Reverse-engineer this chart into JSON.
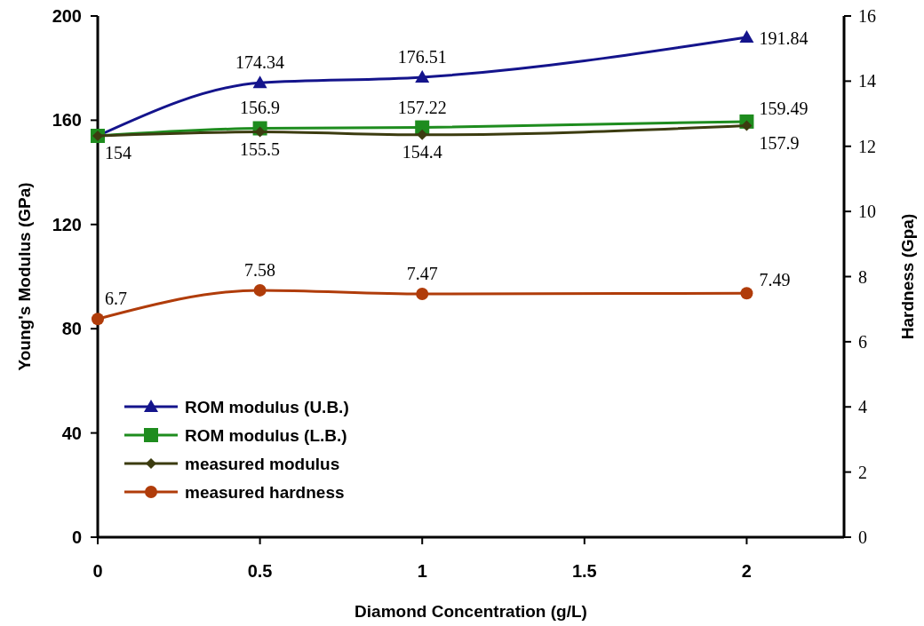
{
  "chart_data": {
    "type": "line",
    "xlabel": "Diamond Concentration (g/L)",
    "ylabel": "Young's Modulus (GPa)",
    "y2label": "Hardness (Gpa)",
    "x": [
      0,
      0.5,
      1,
      2
    ],
    "xlim": [
      0,
      2.3
    ],
    "xticks": [
      0,
      0.5,
      1,
      1.5,
      2
    ],
    "ylim": [
      0,
      200
    ],
    "yticks": [
      0,
      40,
      80,
      120,
      160,
      200
    ],
    "y2lim": [
      0,
      16
    ],
    "y2ticks": [
      0,
      2,
      4,
      6,
      8,
      10,
      12,
      14,
      16
    ],
    "grid": false,
    "legend": "bottom left",
    "series": [
      {
        "name": "ROM modulus (U.B.)",
        "color": "#14148c",
        "marker": "triangle",
        "values": [
          154,
          174.34,
          176.51,
          191.84
        ],
        "value_labels": [
          null,
          "174.34",
          "176.51",
          "191.84"
        ]
      },
      {
        "name": "ROM modulus (L.B.)",
        "color": "#1e8c1e",
        "marker": "square",
        "values": [
          154,
          156.9,
          157.22,
          159.49
        ],
        "value_labels": [
          null,
          "156.9",
          "157.22",
          "159.49"
        ]
      },
      {
        "name": "measured modulus",
        "color": "#3c3c10",
        "marker": "diamond",
        "values": [
          154,
          155.5,
          154.4,
          157.9
        ],
        "value_labels": [
          "154",
          "155.5",
          "154.4",
          "157.9"
        ]
      },
      {
        "name": "measured hardness",
        "color": "#b03c0a",
        "marker": "circle",
        "axis": "y2",
        "values": [
          6.7,
          7.58,
          7.47,
          7.49
        ],
        "value_labels": [
          "6.7",
          "7.58",
          "7.47",
          "7.49"
        ]
      }
    ]
  }
}
